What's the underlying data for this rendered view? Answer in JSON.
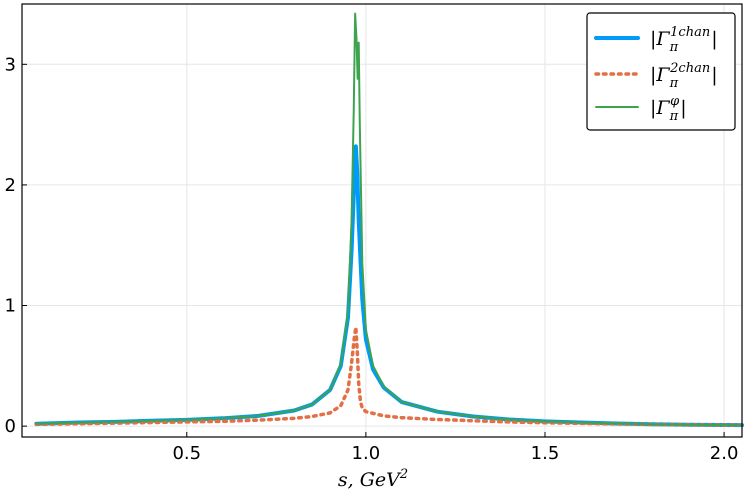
{
  "chart_data": {
    "type": "line",
    "xlabel": "s, GeV",
    "xlabel_sup": "2",
    "xlim": [
      0.04,
      2.05
    ],
    "ylim": [
      -0.09,
      3.5
    ],
    "xticks": [
      0.5,
      1.0,
      1.5,
      2.0
    ],
    "xtick_labels": [
      "0.5",
      "1.0",
      "1.5",
      "2.0"
    ],
    "yticks": [
      0,
      1,
      2,
      3
    ],
    "ytick_labels": [
      "0",
      "1",
      "2",
      "3"
    ],
    "grid": true,
    "legend_position": "top-right",
    "series": [
      {
        "name": "|Γπ1chan|",
        "legend_sup": "1chan",
        "legend_sub": "π",
        "color": "#009af9",
        "style": "solid",
        "points": [
          [
            0.08,
            0.02
          ],
          [
            0.2,
            0.03
          ],
          [
            0.3,
            0.035
          ],
          [
            0.4,
            0.045
          ],
          [
            0.5,
            0.052
          ],
          [
            0.6,
            0.065
          ],
          [
            0.7,
            0.085
          ],
          [
            0.8,
            0.13
          ],
          [
            0.85,
            0.18
          ],
          [
            0.9,
            0.3
          ],
          [
            0.93,
            0.5
          ],
          [
            0.95,
            0.9
          ],
          [
            0.96,
            1.45
          ],
          [
            0.968,
            2.05
          ],
          [
            0.972,
            2.32
          ],
          [
            0.976,
            2.1
          ],
          [
            0.98,
            1.7
          ],
          [
            0.99,
            1.05
          ],
          [
            1.0,
            0.72
          ],
          [
            1.02,
            0.47
          ],
          [
            1.05,
            0.32
          ],
          [
            1.1,
            0.2
          ],
          [
            1.2,
            0.12
          ],
          [
            1.3,
            0.08
          ],
          [
            1.4,
            0.055
          ],
          [
            1.5,
            0.04
          ],
          [
            1.6,
            0.03
          ],
          [
            1.7,
            0.022
          ],
          [
            1.8,
            0.016
          ],
          [
            1.9,
            0.012
          ],
          [
            2.05,
            0.008
          ]
        ]
      },
      {
        "name": "|Γπ2chan|",
        "legend_sup": "2chan",
        "legend_sub": "π",
        "color": "#e26f46",
        "style": "dotted",
        "points": [
          [
            0.08,
            0.015
          ],
          [
            0.2,
            0.02
          ],
          [
            0.3,
            0.025
          ],
          [
            0.4,
            0.03
          ],
          [
            0.5,
            0.035
          ],
          [
            0.6,
            0.04
          ],
          [
            0.7,
            0.05
          ],
          [
            0.8,
            0.065
          ],
          [
            0.85,
            0.08
          ],
          [
            0.9,
            0.11
          ],
          [
            0.93,
            0.17
          ],
          [
            0.95,
            0.3
          ],
          [
            0.96,
            0.52
          ],
          [
            0.968,
            0.74
          ],
          [
            0.972,
            0.82
          ],
          [
            0.976,
            0.62
          ],
          [
            0.98,
            0.35
          ],
          [
            0.985,
            0.2
          ],
          [
            0.99,
            0.15
          ],
          [
            1.0,
            0.12
          ],
          [
            1.05,
            0.085
          ],
          [
            1.1,
            0.07
          ],
          [
            1.2,
            0.055
          ],
          [
            1.3,
            0.045
          ],
          [
            1.4,
            0.035
          ],
          [
            1.5,
            0.028
          ],
          [
            1.6,
            0.023
          ],
          [
            1.7,
            0.018
          ],
          [
            1.8,
            0.014
          ],
          [
            1.9,
            0.011
          ],
          [
            2.05,
            0.008
          ]
        ]
      },
      {
        "name": "|Γπφ|",
        "legend_sup": "φ",
        "legend_sub": "π",
        "color": "#3da44d",
        "style": "solid",
        "points": [
          [
            0.08,
            0.02
          ],
          [
            0.2,
            0.03
          ],
          [
            0.3,
            0.035
          ],
          [
            0.4,
            0.045
          ],
          [
            0.5,
            0.052
          ],
          [
            0.6,
            0.065
          ],
          [
            0.7,
            0.085
          ],
          [
            0.8,
            0.13
          ],
          [
            0.85,
            0.18
          ],
          [
            0.9,
            0.3
          ],
          [
            0.93,
            0.52
          ],
          [
            0.95,
            0.95
          ],
          [
            0.96,
            1.7
          ],
          [
            0.966,
            2.6
          ],
          [
            0.97,
            3.42
          ],
          [
            0.974,
            3.2
          ],
          [
            0.977,
            2.88
          ],
          [
            0.98,
            3.18
          ],
          [
            0.983,
            2.5
          ],
          [
            0.99,
            1.35
          ],
          [
            1.0,
            0.8
          ],
          [
            1.02,
            0.5
          ],
          [
            1.05,
            0.33
          ],
          [
            1.1,
            0.2
          ],
          [
            1.2,
            0.12
          ],
          [
            1.3,
            0.08
          ],
          [
            1.4,
            0.055
          ],
          [
            1.5,
            0.04
          ],
          [
            1.6,
            0.03
          ],
          [
            1.7,
            0.022
          ],
          [
            1.8,
            0.016
          ],
          [
            1.9,
            0.012
          ],
          [
            2.05,
            0.008
          ]
        ]
      }
    ]
  }
}
